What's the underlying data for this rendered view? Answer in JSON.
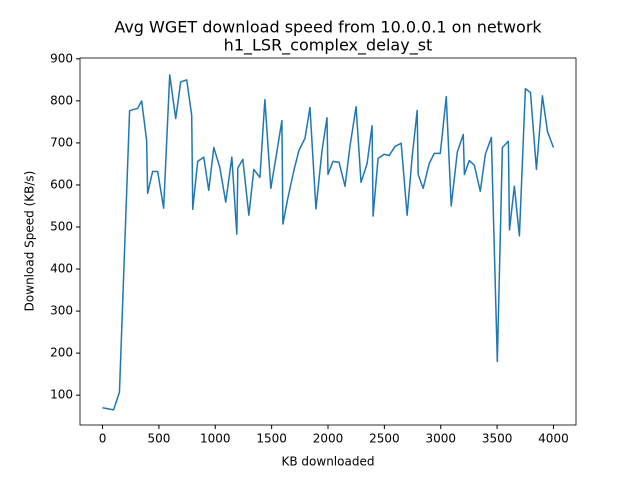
{
  "chart_data": {
    "type": "line",
    "title": [
      "Avg WGET download speed from 10.0.0.1 on network",
      "h1_LSR_complex_delay_st"
    ],
    "x_label": "KB downloaded",
    "y_label": "Download Speed (KB/s)",
    "xlim": [
      -200,
      4200
    ],
    "ylim": [
      29,
      902
    ],
    "xticks": [
      0,
      500,
      1000,
      1500,
      2000,
      2500,
      3000,
      3500,
      4000
    ],
    "yticks": [
      100,
      200,
      300,
      400,
      500,
      600,
      700,
      800,
      900
    ],
    "series": [
      {
        "color": "#1f77b4",
        "x": [
          0,
          98,
          150,
          240,
          311,
          347,
          391,
          400,
          444,
          489,
          542,
          596,
          649,
          693,
          747,
          791,
          800,
          844,
          898,
          942,
          987,
          1040,
          1093,
          1147,
          1191,
          1200,
          1244,
          1298,
          1342,
          1396,
          1440,
          1493,
          1547,
          1591,
          1600,
          1644,
          1698,
          1742,
          1796,
          1840,
          1893,
          1947,
          1991,
          2000,
          2044,
          2098,
          2151,
          2196,
          2249,
          2293,
          2347,
          2391,
          2400,
          2444,
          2498,
          2542,
          2596,
          2649,
          2702,
          2747,
          2791,
          2800,
          2844,
          2898,
          2942,
          2996,
          3049,
          3093,
          3147,
          3200,
          3210,
          3253,
          3298,
          3351,
          3396,
          3449,
          3502,
          3547,
          3600,
          3610,
          3653,
          3698,
          3751,
          3796,
          3849,
          3902,
          3947,
          4000
        ],
        "values": [
          70,
          65,
          107,
          777,
          782,
          800,
          706,
          580,
          632,
          632,
          545,
          862,
          758,
          845,
          850,
          765,
          542,
          656,
          666,
          587,
          689,
          642,
          559,
          666,
          483,
          640,
          661,
          528,
          637,
          618,
          803,
          592,
          680,
          753,
          507,
          569,
          635,
          682,
          711,
          784,
          543,
          682,
          760,
          625,
          656,
          654,
          597,
          694,
          786,
          606,
          651,
          741,
          526,
          663,
          673,
          670,
          692,
          699,
          528,
          668,
          777,
          625,
          592,
          651,
          675,
          675,
          810,
          550,
          678,
          720,
          625,
          658,
          647,
          585,
          673,
          713,
          180,
          689,
          704,
          493,
          597,
          479,
          829,
          820,
          637,
          812,
          727,
          689
        ]
      }
    ]
  }
}
